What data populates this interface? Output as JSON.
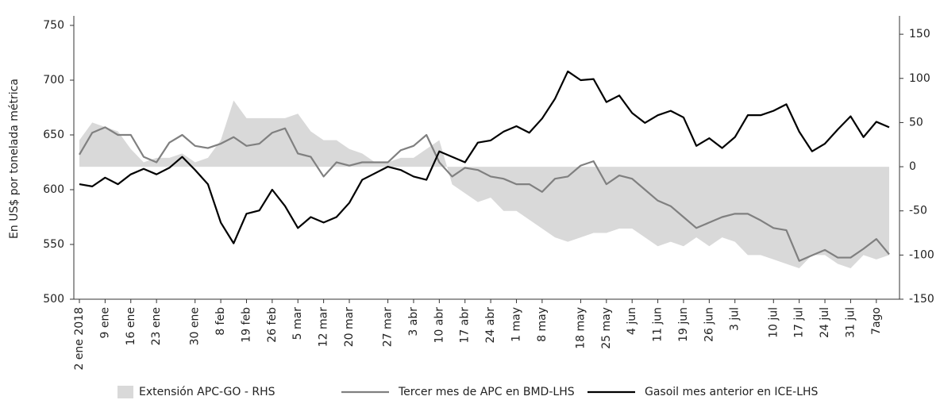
{
  "chart_data": {
    "type": "line",
    "y_label": "En US$ por tonelada métrica",
    "categories": [
      "2 ene 2018",
      null,
      "9 ene",
      null,
      "16 ene",
      null,
      "23 ene",
      null,
      null,
      "30 ene",
      null,
      "8 feb",
      null,
      "19 feb",
      null,
      "26 feb",
      null,
      "5 mar",
      null,
      "12 mar",
      null,
      "20 mar",
      null,
      null,
      "27 mar",
      null,
      "3 abr",
      null,
      "10 abr",
      null,
      "17 abr",
      null,
      "24 abr",
      null,
      "1 may",
      null,
      "8 may",
      null,
      null,
      "18 may",
      null,
      "25 may",
      null,
      "4 jun",
      null,
      "11 jun",
      null,
      "19 jun",
      null,
      "26 jun",
      null,
      "3 jul",
      null,
      null,
      "10 jul",
      null,
      "17 jul",
      null,
      "24 jul",
      null,
      "31 jul",
      null,
      "7ago",
      null
    ],
    "series": [
      {
        "name": "Extensión APC-GO - RHS",
        "color": "#d9d9d9",
        "kind": "area",
        "axis": "y2",
        "values": [
          30,
          50,
          45,
          40,
          20,
          5,
          10,
          10,
          15,
          5,
          10,
          30,
          75,
          55,
          55,
          55,
          55,
          60,
          40,
          30,
          30,
          20,
          15,
          5,
          5,
          10,
          10,
          20,
          30,
          -20,
          -30,
          -40,
          -35,
          -50,
          -50,
          -60,
          -70,
          -80,
          -85,
          -80,
          -75,
          -75,
          -70,
          -70,
          -80,
          -90,
          -85,
          -90,
          -80,
          -90,
          -80,
          -85,
          -100,
          -100,
          -105,
          -110,
          -115,
          -100,
          -100,
          -110,
          -115,
          -100,
          -105,
          -100
        ]
      },
      {
        "name": "Tercer mes de APC en BMD-LHS",
        "color": "#808080",
        "kind": "line",
        "values": [
          632,
          652,
          657,
          650,
          650,
          630,
          625,
          643,
          650,
          640,
          638,
          642,
          648,
          640,
          642,
          652,
          656,
          633,
          630,
          612,
          625,
          622,
          625,
          625,
          625,
          636,
          640,
          650,
          625,
          612,
          620,
          618,
          612,
          610,
          605,
          605,
          598,
          610,
          612,
          622,
          626,
          605,
          613,
          610,
          600,
          590,
          585,
          575,
          565,
          570,
          575,
          578,
          578,
          572,
          565,
          563,
          535,
          540,
          545,
          538,
          538,
          546,
          555,
          541
        ]
      },
      {
        "name": "Gasoil mes anterior en ICE-LHS",
        "color": "#000000",
        "kind": "line",
        "values": [
          605,
          603,
          611,
          605,
          614,
          619,
          614,
          620,
          630,
          618,
          605,
          570,
          551,
          578,
          581,
          600,
          585,
          565,
          575,
          570,
          575,
          588,
          609,
          615,
          621,
          618,
          612,
          609,
          635,
          630,
          625,
          643,
          645,
          653,
          658,
          652,
          665,
          683,
          708,
          700,
          701,
          680,
          686,
          670,
          661,
          668,
          672,
          666,
          640,
          647,
          638,
          648,
          668,
          668,
          672,
          678,
          653,
          635,
          642,
          655,
          667,
          648,
          662,
          657
        ]
      }
    ],
    "ylim": [
      500,
      750
    ],
    "yticks": [
      500,
      550,
      600,
      650,
      700,
      750
    ],
    "y2lim": [
      -150,
      160
    ],
    "y2ticks": [
      -150,
      -100,
      -50,
      0,
      50,
      100,
      150
    ]
  }
}
